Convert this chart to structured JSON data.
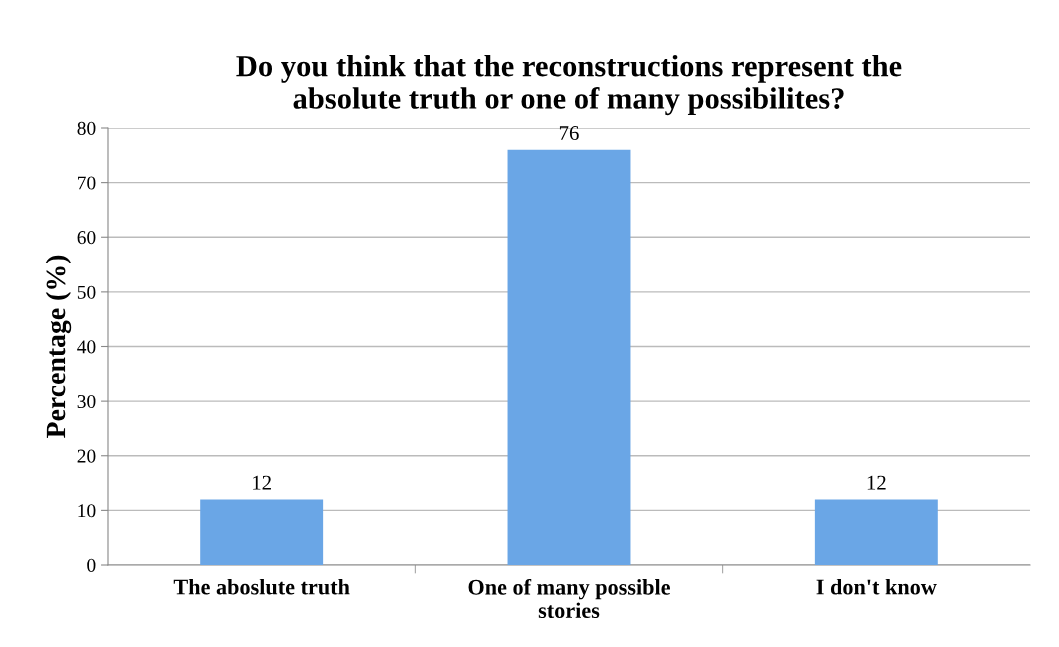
{
  "chart_data": {
    "type": "bar",
    "title": "Do you think that the reconstructions represent the\nabsolute truth or one of many possibilites?",
    "ylabel": "Percentage (%)",
    "categories": [
      "The aboslute truth",
      "One of many possible\nstories",
      "I don't know"
    ],
    "values": [
      12,
      76,
      12
    ],
    "color": "#6aa6e6",
    "ylim": [
      0,
      80
    ],
    "yticks": [
      0,
      10,
      20,
      30,
      40,
      50,
      60,
      70,
      80
    ],
    "grid": "y",
    "data_labels": true
  }
}
